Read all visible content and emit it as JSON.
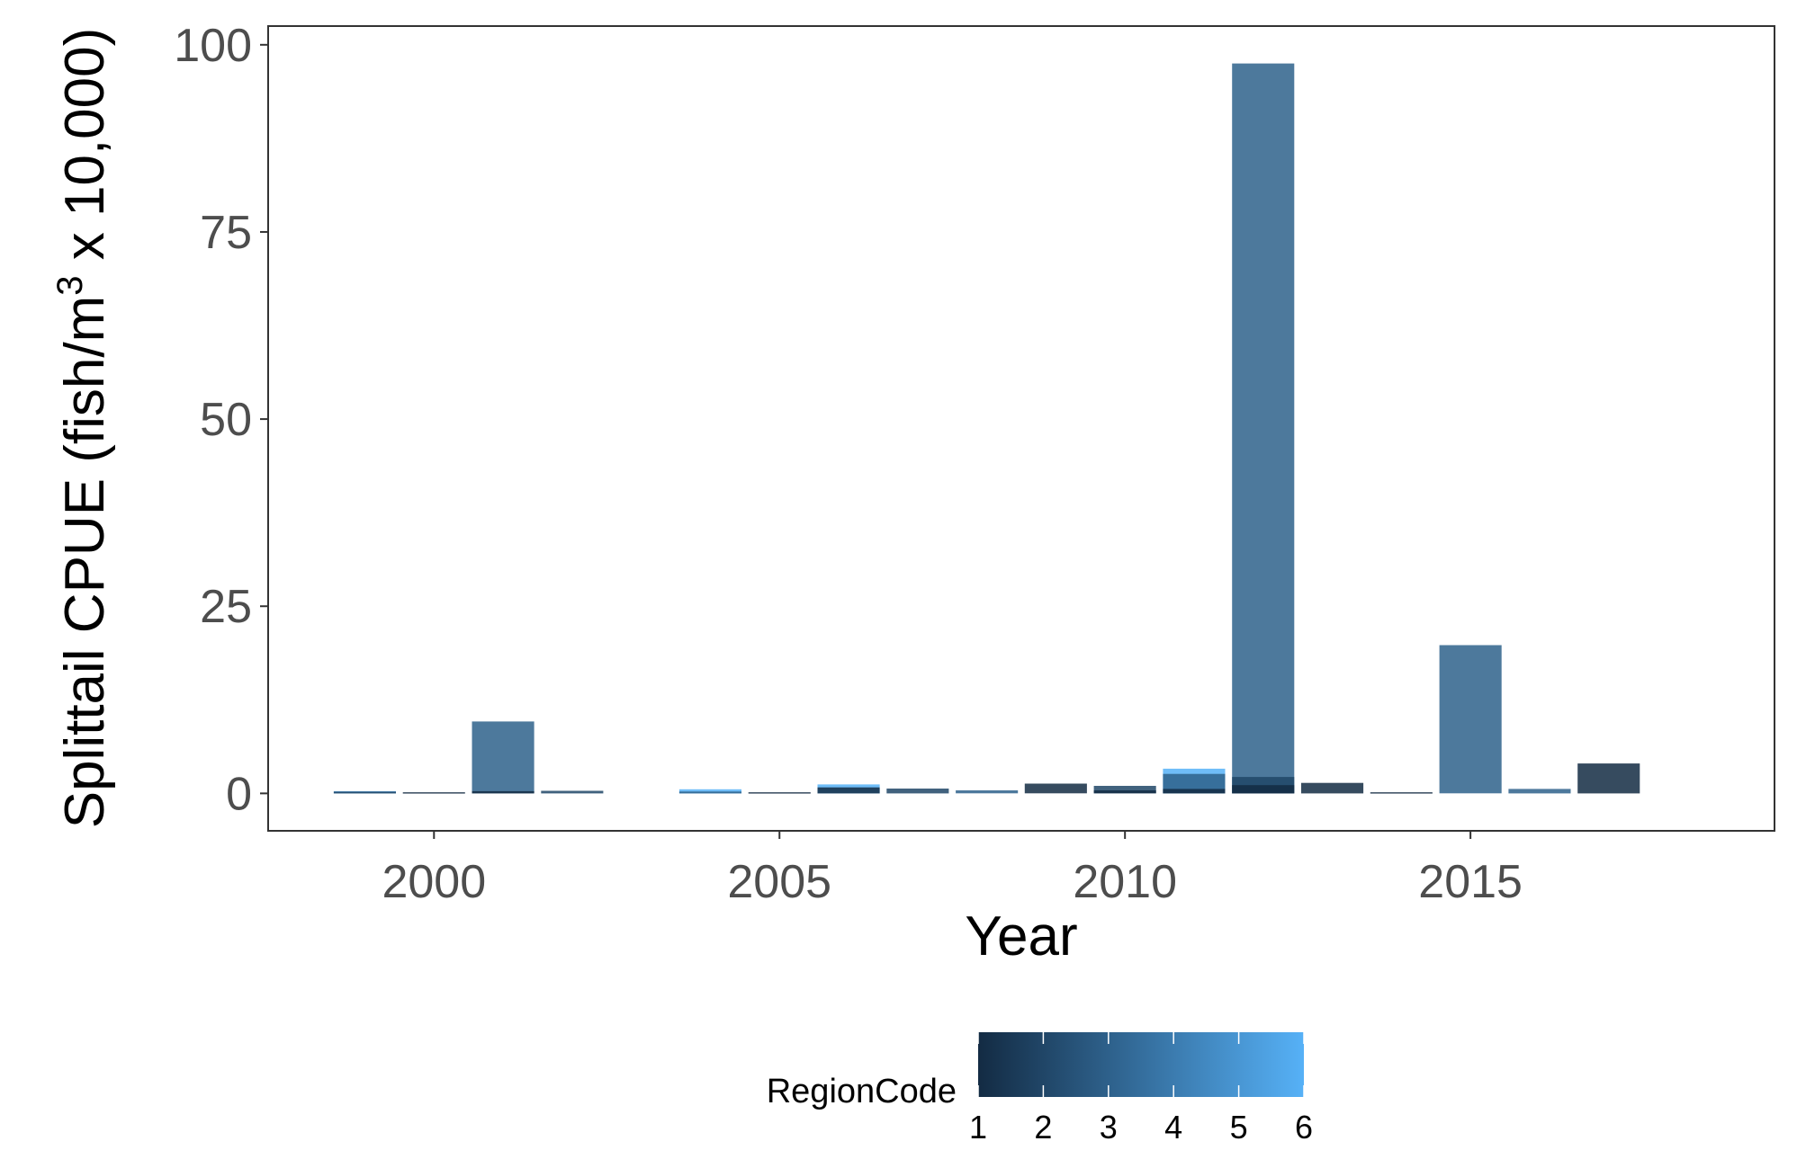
{
  "chart_data": {
    "type": "bar",
    "ylabel_main": "Splittail CPUE (fish/m",
    "ylabel_sup": "3",
    "ylabel_tail": " x 10,000)",
    "xlabel": "Year",
    "xlim": [
      1997.6,
      2019.4
    ],
    "ylim": [
      -5,
      102.5
    ],
    "x_ticks": [
      2000,
      2005,
      2010,
      2015
    ],
    "y_ticks": [
      0,
      25,
      50,
      75,
      100
    ],
    "legend": {
      "title": "RegionCode",
      "position": "bottom",
      "range": [
        1,
        6
      ],
      "ticks": [
        1,
        2,
        3,
        4,
        5,
        6
      ],
      "low_color": "#132b43",
      "high_color": "#56b1f7"
    },
    "bars": [
      {
        "year": 1999,
        "region": 4,
        "value": 0.3
      },
      {
        "year": 1999,
        "region": 2,
        "value": 0.2
      },
      {
        "year": 2000,
        "region": 1,
        "value": 0.15
      },
      {
        "year": 2001,
        "region": 3,
        "value": 9.6
      },
      {
        "year": 2001,
        "region": 1,
        "value": 0.3
      },
      {
        "year": 2002,
        "region": 2,
        "value": 0.35
      },
      {
        "year": 2004,
        "region": 6,
        "value": 0.55
      },
      {
        "year": 2004,
        "region": 3,
        "value": 0.25
      },
      {
        "year": 2005,
        "region": 1,
        "value": 0.15
      },
      {
        "year": 2006,
        "region": 6,
        "value": 1.2
      },
      {
        "year": 2006,
        "region": 1,
        "value": 0.8
      },
      {
        "year": 2007,
        "region": 2,
        "value": 0.65
      },
      {
        "year": 2008,
        "region": 3,
        "value": 0.4
      },
      {
        "year": 2009,
        "region": 1,
        "value": 1.3
      },
      {
        "year": 2010,
        "region": 2,
        "value": 1.0
      },
      {
        "year": 2010,
        "region": 1,
        "value": 0.4
      },
      {
        "year": 2011,
        "region": 6,
        "value": 3.3
      },
      {
        "year": 2011,
        "region": 3,
        "value": 2.6
      },
      {
        "year": 2011,
        "region": 1,
        "value": 0.6
      },
      {
        "year": 2012,
        "region": 3,
        "value": 97.5
      },
      {
        "year": 2012,
        "region": 2,
        "value": 2.2
      },
      {
        "year": 2012,
        "region": 1,
        "value": 1.1
      },
      {
        "year": 2013,
        "region": 1,
        "value": 1.4
      },
      {
        "year": 2014,
        "region": 1,
        "value": 0.15
      },
      {
        "year": 2015,
        "region": 3,
        "value": 19.8
      },
      {
        "year": 2016,
        "region": 3,
        "value": 0.6
      },
      {
        "year": 2017,
        "region": 1,
        "value": 4.0
      }
    ]
  }
}
